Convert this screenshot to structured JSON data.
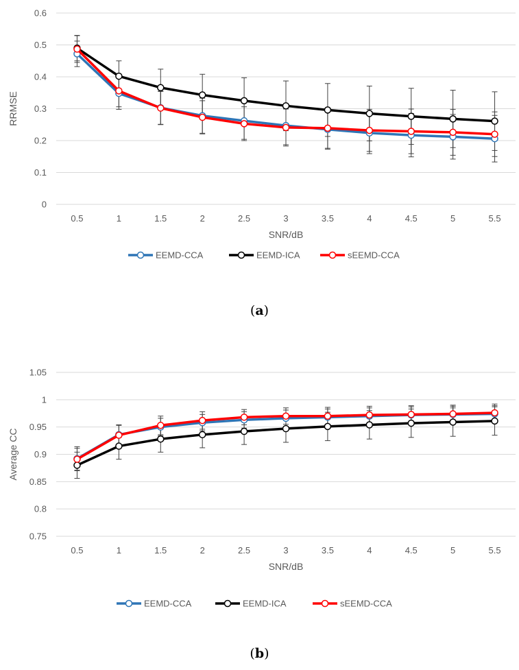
{
  "chart_data": [
    {
      "type": "line",
      "panel": "(a)",
      "xlabel": "SNR/dB",
      "ylabel": "RRMSE",
      "x": [
        "0.5",
        "1",
        "1.5",
        "2",
        "2.5",
        "3",
        "3.5",
        "4",
        "4.5",
        "5",
        "5.5"
      ],
      "ylim": [
        0,
        0.6
      ],
      "yticks": [
        0,
        0.1,
        0.2,
        0.3,
        0.4,
        0.5,
        0.6
      ],
      "ytick_labels": [
        "0",
        "0.1",
        "0.2",
        "0.3",
        "0.4",
        "0.5",
        "0.6"
      ],
      "grid": true,
      "legend": "bottom",
      "series": [
        {
          "name": "EEMD-CCA",
          "color": "#2E75B6",
          "values": [
            0.472,
            0.348,
            0.303,
            0.278,
            0.262,
            0.247,
            0.235,
            0.224,
            0.217,
            0.212,
            0.206
          ],
          "err": [
            0.04,
            0.05,
            0.052,
            0.055,
            0.058,
            0.06,
            0.062,
            0.065,
            0.068,
            0.07,
            0.073
          ]
        },
        {
          "name": "EEMD-ICA",
          "color": "#000000",
          "values": [
            0.49,
            0.402,
            0.366,
            0.343,
            0.325,
            0.309,
            0.296,
            0.285,
            0.276,
            0.268,
            0.261
          ],
          "err": [
            0.04,
            0.048,
            0.058,
            0.065,
            0.072,
            0.078,
            0.083,
            0.086,
            0.088,
            0.09,
            0.092
          ]
        },
        {
          "name": "sEEMD-CCA",
          "color": "#FF0000",
          "values": [
            0.487,
            0.356,
            0.302,
            0.273,
            0.253,
            0.241,
            0.239,
            0.232,
            0.229,
            0.226,
            0.22
          ],
          "err": [
            0.042,
            0.05,
            0.052,
            0.052,
            0.053,
            0.058,
            0.063,
            0.066,
            0.07,
            0.072,
            0.07
          ]
        }
      ]
    },
    {
      "type": "line",
      "panel": "(b)",
      "xlabel": "SNR/dB",
      "ylabel": "Average CC",
      "x": [
        "0.5",
        "1",
        "1.5",
        "2",
        "2.5",
        "3",
        "3.5",
        "4",
        "4.5",
        "5",
        "5.5"
      ],
      "ylim": [
        0.75,
        1.05
      ],
      "yticks": [
        0.75,
        0.8,
        0.85,
        0.9,
        0.95,
        1.0,
        1.05
      ],
      "ytick_labels": [
        "0.75",
        "0.8",
        "0.85",
        "0.9",
        "0.95",
        "1",
        "1.05"
      ],
      "grid": true,
      "legend": "bottom",
      "series": [
        {
          "name": "EEMD-CCA",
          "color": "#2E75B6",
          "values": [
            0.892,
            0.936,
            0.95,
            0.958,
            0.963,
            0.966,
            0.968,
            0.97,
            0.972,
            0.973,
            0.974
          ],
          "err": [
            0.022,
            0.018,
            0.016,
            0.015,
            0.015,
            0.015,
            0.015,
            0.015,
            0.015,
            0.015,
            0.015
          ]
        },
        {
          "name": "EEMD-ICA",
          "color": "#000000",
          "values": [
            0.88,
            0.915,
            0.928,
            0.936,
            0.942,
            0.947,
            0.951,
            0.954,
            0.957,
            0.959,
            0.961
          ],
          "err": [
            0.024,
            0.024,
            0.024,
            0.024,
            0.024,
            0.025,
            0.026,
            0.026,
            0.026,
            0.026,
            0.026
          ]
        },
        {
          "name": "sEEMD-CCA",
          "color": "#FF0000",
          "values": [
            0.891,
            0.935,
            0.953,
            0.962,
            0.968,
            0.97,
            0.97,
            0.972,
            0.973,
            0.974,
            0.976
          ],
          "err": [
            0.02,
            0.018,
            0.017,
            0.016,
            0.014,
            0.015,
            0.016,
            0.016,
            0.016,
            0.016,
            0.016
          ]
        }
      ]
    }
  ],
  "panel_labels": {
    "a_paren_open": "(",
    "a": "a",
    "a_paren_close": ")",
    "b_paren_open": "(",
    "b": "b",
    "b_paren_close": ")"
  }
}
